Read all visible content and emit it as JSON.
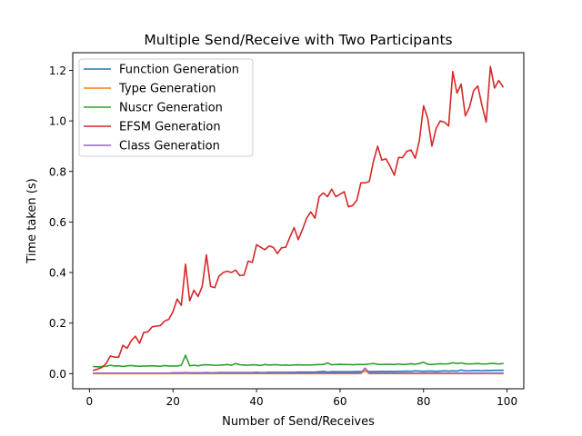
{
  "chart_data": {
    "type": "line",
    "title": "Multiple Send/Receive with Two Participants",
    "xlabel": "Number of Send/Receives",
    "ylabel": "Time taken (s)",
    "xlim": [
      -4,
      104
    ],
    "ylim": [
      -0.06,
      1.27
    ],
    "xticks": [
      0,
      20,
      40,
      60,
      80,
      100
    ],
    "yticks": [
      0.0,
      0.2,
      0.4,
      0.6,
      0.8,
      1.0,
      1.2
    ],
    "xtick_labels": [
      "0",
      "20",
      "40",
      "60",
      "80",
      "100"
    ],
    "ytick_labels": [
      "0.0",
      "0.2",
      "0.4",
      "0.6",
      "0.8",
      "1.0",
      "1.2"
    ],
    "grid": false,
    "legend_position": "upper-left",
    "x": [
      1,
      2,
      3,
      4,
      5,
      6,
      7,
      8,
      9,
      10,
      11,
      12,
      13,
      14,
      15,
      16,
      17,
      18,
      19,
      20,
      21,
      22,
      23,
      24,
      25,
      26,
      27,
      28,
      29,
      30,
      31,
      32,
      33,
      34,
      35,
      36,
      37,
      38,
      39,
      40,
      41,
      42,
      43,
      44,
      45,
      46,
      47,
      48,
      49,
      50,
      51,
      52,
      53,
      54,
      55,
      56,
      57,
      58,
      59,
      60,
      61,
      62,
      63,
      64,
      65,
      66,
      67,
      68,
      69,
      70,
      71,
      72,
      73,
      74,
      75,
      76,
      77,
      78,
      79,
      80,
      81,
      82,
      83,
      84,
      85,
      86,
      87,
      88,
      89,
      90,
      91,
      92,
      93,
      94,
      95,
      96,
      97,
      98,
      99
    ],
    "series": [
      {
        "name": "Function Generation",
        "color": "#1f77b4",
        "values": [
          0.001,
          0.001,
          0.001,
          0.001,
          0.001,
          0.001,
          0.001,
          0.001,
          0.002,
          0.002,
          0.002,
          0.002,
          0.002,
          0.002,
          0.002,
          0.002,
          0.002,
          0.002,
          0.002,
          0.003,
          0.003,
          0.003,
          0.004,
          0.003,
          0.003,
          0.003,
          0.003,
          0.004,
          0.003,
          0.003,
          0.004,
          0.004,
          0.004,
          0.004,
          0.004,
          0.004,
          0.004,
          0.004,
          0.004,
          0.005,
          0.004,
          0.004,
          0.005,
          0.005,
          0.005,
          0.005,
          0.005,
          0.005,
          0.005,
          0.006,
          0.006,
          0.006,
          0.006,
          0.006,
          0.007,
          0.009,
          0.006,
          0.007,
          0.007,
          0.007,
          0.007,
          0.007,
          0.007,
          0.008,
          0.008,
          0.01,
          0.008,
          0.008,
          0.008,
          0.009,
          0.008,
          0.009,
          0.008,
          0.009,
          0.009,
          0.01,
          0.009,
          0.011,
          0.01,
          0.009,
          0.01,
          0.01,
          0.009,
          0.01,
          0.011,
          0.01,
          0.011,
          0.01,
          0.014,
          0.011,
          0.011,
          0.012,
          0.012,
          0.011,
          0.012,
          0.012,
          0.013,
          0.013,
          0.013
        ]
      },
      {
        "name": "Type Generation",
        "color": "#ff7f0e",
        "values": [
          0.0,
          0.0,
          0.0,
          0.0,
          0.0,
          0.0,
          0.0,
          0.0,
          0.0,
          0.0,
          0.0,
          0.0,
          0.0,
          0.0,
          0.0,
          0.0,
          0.0,
          0.0,
          0.0,
          0.0,
          0.0,
          0.0,
          0.0,
          0.0,
          0.0,
          0.0,
          0.0,
          0.0,
          0.0,
          0.0,
          0.0,
          0.0,
          0.0,
          0.0,
          0.0,
          0.0,
          0.0,
          0.0,
          0.0,
          0.0,
          0.0,
          0.0,
          0.0,
          0.0,
          0.0,
          0.0,
          0.0,
          0.0,
          0.0,
          0.0,
          0.0,
          0.0,
          0.0,
          0.0,
          0.0,
          0.0,
          0.0,
          0.0,
          0.0,
          0.0,
          0.0,
          0.0,
          0.0,
          0.0,
          0.001,
          0.012,
          0.0,
          0.0,
          0.0,
          0.0,
          0.0,
          0.0,
          0.0,
          0.0,
          0.0,
          0.0,
          0.0,
          0.0,
          0.0,
          0.0,
          0.0,
          0.0,
          0.0,
          0.0,
          0.0,
          0.0,
          0.0,
          0.0,
          0.0,
          0.0,
          0.0,
          0.0,
          0.0,
          0.0,
          0.0,
          0.0,
          0.0,
          0.0,
          0.0
        ]
      },
      {
        "name": "Nuscr Generation",
        "color": "#2ca02c",
        "values": [
          0.028,
          0.027,
          0.028,
          0.029,
          0.033,
          0.03,
          0.031,
          0.028,
          0.031,
          0.032,
          0.03,
          0.029,
          0.03,
          0.03,
          0.031,
          0.03,
          0.029,
          0.032,
          0.03,
          0.03,
          0.03,
          0.033,
          0.073,
          0.031,
          0.033,
          0.031,
          0.034,
          0.035,
          0.034,
          0.033,
          0.033,
          0.034,
          0.036,
          0.033,
          0.04,
          0.035,
          0.034,
          0.033,
          0.035,
          0.034,
          0.032,
          0.036,
          0.034,
          0.035,
          0.035,
          0.033,
          0.034,
          0.033,
          0.034,
          0.035,
          0.034,
          0.034,
          0.034,
          0.035,
          0.036,
          0.036,
          0.042,
          0.035,
          0.036,
          0.037,
          0.036,
          0.036,
          0.035,
          0.036,
          0.036,
          0.036,
          0.038,
          0.04,
          0.037,
          0.036,
          0.037,
          0.037,
          0.036,
          0.038,
          0.036,
          0.037,
          0.039,
          0.037,
          0.04,
          0.045,
          0.037,
          0.036,
          0.038,
          0.039,
          0.038,
          0.039,
          0.043,
          0.04,
          0.042,
          0.039,
          0.038,
          0.039,
          0.04,
          0.038,
          0.038,
          0.04,
          0.04,
          0.038,
          0.04
        ]
      },
      {
        "name": "EFSM Generation",
        "color": "#d62728",
        "values": [
          0.013,
          0.018,
          0.025,
          0.04,
          0.07,
          0.065,
          0.065,
          0.112,
          0.1,
          0.13,
          0.148,
          0.12,
          0.163,
          0.165,
          0.185,
          0.188,
          0.19,
          0.208,
          0.215,
          0.245,
          0.295,
          0.27,
          0.433,
          0.288,
          0.33,
          0.305,
          0.345,
          0.47,
          0.345,
          0.34,
          0.385,
          0.4,
          0.405,
          0.4,
          0.41,
          0.388,
          0.39,
          0.445,
          0.44,
          0.51,
          0.5,
          0.49,
          0.505,
          0.5,
          0.475,
          0.498,
          0.5,
          0.54,
          0.578,
          0.53,
          0.57,
          0.615,
          0.64,
          0.615,
          0.7,
          0.715,
          0.7,
          0.73,
          0.7,
          0.71,
          0.72,
          0.66,
          0.665,
          0.685,
          0.755,
          0.755,
          0.76,
          0.84,
          0.9,
          0.845,
          0.85,
          0.82,
          0.785,
          0.855,
          0.855,
          0.88,
          0.885,
          0.852,
          0.922,
          1.06,
          1.01,
          0.9,
          0.97,
          1.0,
          0.995,
          0.98,
          1.195,
          1.11,
          1.145,
          1.02,
          1.055,
          1.12,
          1.138,
          1.06,
          0.995,
          1.215,
          1.13,
          1.16,
          1.135
        ]
      },
      {
        "name": "Class Generation",
        "color": "#9467bd",
        "values": [
          0.002,
          0.002,
          0.002,
          0.002,
          0.002,
          0.002,
          0.002,
          0.002,
          0.002,
          0.002,
          0.002,
          0.002,
          0.002,
          0.002,
          0.002,
          0.002,
          0.002,
          0.002,
          0.002,
          0.002,
          0.002,
          0.002,
          0.004,
          0.002,
          0.002,
          0.002,
          0.002,
          0.003,
          0.002,
          0.002,
          0.002,
          0.002,
          0.002,
          0.002,
          0.002,
          0.002,
          0.002,
          0.002,
          0.002,
          0.002,
          0.002,
          0.002,
          0.002,
          0.002,
          0.002,
          0.002,
          0.002,
          0.002,
          0.002,
          0.002,
          0.002,
          0.002,
          0.002,
          0.002,
          0.002,
          0.002,
          0.002,
          0.002,
          0.002,
          0.002,
          0.002,
          0.002,
          0.002,
          0.002,
          0.002,
          0.022,
          0.002,
          0.002,
          0.002,
          0.002,
          0.002,
          0.002,
          0.002,
          0.002,
          0.002,
          0.002,
          0.002,
          0.002,
          0.002,
          0.002,
          0.002,
          0.002,
          0.002,
          0.002,
          0.002,
          0.002,
          0.002,
          0.002,
          0.002,
          0.002,
          0.002,
          0.002,
          0.002,
          0.002,
          0.002,
          0.002,
          0.002,
          0.002,
          0.002
        ]
      }
    ]
  }
}
